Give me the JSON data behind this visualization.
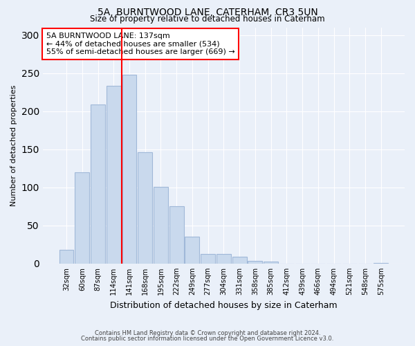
{
  "title": "5A, BURNTWOOD LANE, CATERHAM, CR3 5UN",
  "subtitle": "Size of property relative to detached houses in Caterham",
  "xlabel": "Distribution of detached houses by size in Caterham",
  "ylabel": "Number of detached properties",
  "bar_labels": [
    "32sqm",
    "60sqm",
    "87sqm",
    "114sqm",
    "141sqm",
    "168sqm",
    "195sqm",
    "222sqm",
    "249sqm",
    "277sqm",
    "304sqm",
    "331sqm",
    "358sqm",
    "385sqm",
    "412sqm",
    "439sqm",
    "466sqm",
    "494sqm",
    "521sqm",
    "548sqm",
    "575sqm"
  ],
  "bar_values": [
    18,
    120,
    209,
    234,
    248,
    146,
    101,
    75,
    35,
    13,
    13,
    9,
    4,
    3,
    0,
    0,
    0,
    0,
    0,
    0,
    1
  ],
  "bar_color": "#c9d9ed",
  "bar_edgecolor": "#a0b8d8",
  "property_line_x": 3.5,
  "property_line_label": "5A BURNTWOOD LANE: 137sqm",
  "annotation_line1": "← 44% of detached houses are smaller (534)",
  "annotation_line2": "55% of semi-detached houses are larger (669) →",
  "ylim": [
    0,
    310
  ],
  "yticks": [
    0,
    50,
    100,
    150,
    200,
    250,
    300
  ],
  "background_color": "#eaf0f9",
  "plot_bg_color": "#eaf0f9",
  "grid_color": "#ffffff",
  "footnote1": "Contains HM Land Registry data © Crown copyright and database right 2024.",
  "footnote2": "Contains public sector information licensed under the Open Government Licence v3.0."
}
